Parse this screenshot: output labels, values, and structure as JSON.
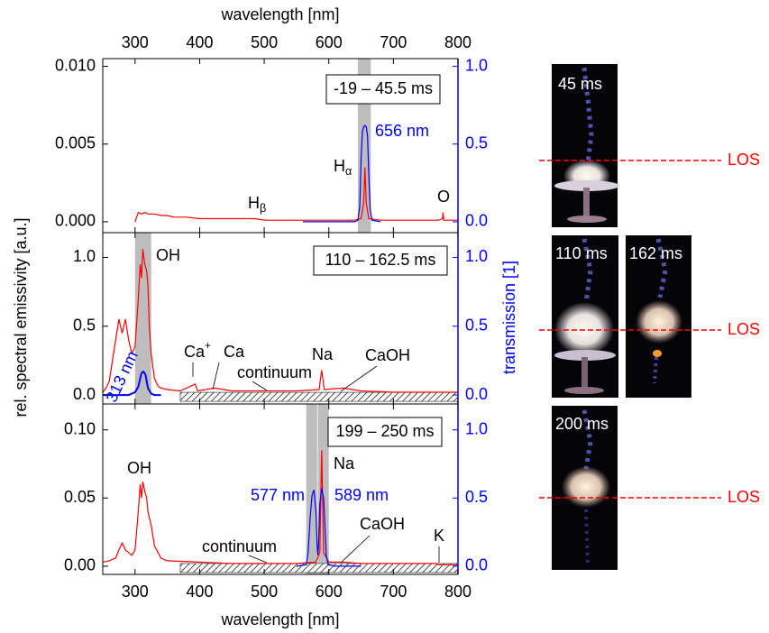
{
  "figure": {
    "xlabel_top": "wavelength [nm]",
    "xlabel": "wavelength [nm]",
    "ylabel": "rel. spectral emissivity [a.u.]",
    "y2label": "transmission [1]",
    "y2_color": "#0000ff"
  },
  "chart_data": [
    {
      "type": "line",
      "time_label": "-19 – 45.5 ms",
      "xlim": [
        250,
        800
      ],
      "xticks": [
        300,
        400,
        500,
        600,
        700,
        800
      ],
      "ylim": [
        -0.0007,
        0.0105
      ],
      "yticks": [
        {
          "value": 0,
          "label": "0.000"
        },
        {
          "value": 0.005,
          "label": "0.005"
        },
        {
          "value": 0.01,
          "label": "0.010"
        }
      ],
      "y2lim": [
        -0.07,
        1.05
      ],
      "y2ticks": [
        {
          "value": 0,
          "label": "0.0"
        },
        {
          "value": 0.5,
          "label": "0.5"
        },
        {
          "value": 1,
          "label": "1.0"
        }
      ],
      "shaded": [
        [
          645,
          665
        ]
      ],
      "series": [
        {
          "color": "#ff0000",
          "x": [
            300,
            305,
            310,
            315,
            320,
            330,
            340,
            350,
            360,
            380,
            400,
            450,
            486,
            500,
            550,
            600,
            640,
            650,
            654,
            656,
            658,
            662,
            680,
            700,
            750,
            770,
            776,
            777,
            778,
            785,
            800
          ],
          "values": [
            0,
            0.0006,
            0.0005,
            0.0006,
            0.0005,
            0.0005,
            0.0004,
            0.0004,
            0.0003,
            0.0003,
            0.0002,
            0.0002,
            0.0002,
            0.0001,
            0.0001,
            0.0001,
            0.0001,
            0.0002,
            0.0012,
            0.0035,
            0.0012,
            0.0002,
            0.0001,
            0.0001,
            0.0001,
            0.0001,
            0.0002,
            0.0006,
            0.0001,
            0.0001,
            0.0001
          ]
        },
        {
          "color": "#0000ff",
          "axis": "y2",
          "x": [
            560,
            600,
            640,
            645,
            648,
            650,
            652,
            654,
            656,
            658,
            660,
            662,
            664,
            667,
            680
          ],
          "values": [
            0,
            0,
            0,
            0.01,
            0.1,
            0.4,
            0.58,
            0.61,
            0.62,
            0.61,
            0.55,
            0.3,
            0.08,
            0.01,
            0
          ]
        }
      ],
      "annotations": [
        {
          "text": "656 nm",
          "color": "#0000ff"
        },
        {
          "text": "H",
          "sub": "α"
        },
        {
          "text": "H",
          "sub": "β"
        },
        {
          "text": "O"
        }
      ]
    },
    {
      "type": "line",
      "time_label": "110 – 162.5 ms",
      "xlim": [
        250,
        800
      ],
      "xticks": [
        300,
        400,
        500,
        600,
        700,
        800
      ],
      "ylim": [
        -0.065,
        1.18
      ],
      "yticks": [
        {
          "value": 0,
          "label": "0.0"
        },
        0.5,
        {
          "value": 1,
          "label": "1.0"
        }
      ],
      "y2lim": [
        -0.065,
        1.18
      ],
      "y2ticks": [
        {
          "value": 0,
          "label": "0.0"
        },
        0.5,
        {
          "value": 1,
          "label": "1.0"
        }
      ],
      "shaded": [
        [
          300,
          325
        ]
      ],
      "hatched": [
        370,
        800
      ],
      "series": [
        {
          "color": "#ff0000",
          "x": [
            250,
            255,
            260,
            265,
            270,
            275,
            280,
            285,
            290,
            295,
            300,
            305,
            308,
            310,
            312,
            315,
            318,
            320,
            322,
            325,
            330,
            335,
            340,
            350,
            370,
            393,
            397,
            423,
            450,
            500,
            550,
            585,
            589,
            593,
            622,
            650,
            700,
            750,
            800
          ],
          "values": [
            0.02,
            0.05,
            0.1,
            0.25,
            0.4,
            0.55,
            0.45,
            0.55,
            0.4,
            0.3,
            0.35,
            0.7,
            0.95,
            0.85,
            1.06,
            0.95,
            0.9,
            0.8,
            0.5,
            0.3,
            0.12,
            0.07,
            0.05,
            0.04,
            0.03,
            0.08,
            0.03,
            0.05,
            0.03,
            0.03,
            0.03,
            0.04,
            0.18,
            0.04,
            0.05,
            0.03,
            0.02,
            0.02,
            0.02
          ]
        },
        {
          "color": "#0000ff",
          "axis": "y2",
          "x": [
            250,
            290,
            300,
            305,
            308,
            310,
            313,
            316,
            318,
            320,
            325,
            330,
            340
          ],
          "values": [
            0,
            0,
            0.02,
            0.06,
            0.12,
            0.16,
            0.17,
            0.15,
            0.1,
            0.05,
            0.01,
            0,
            0
          ]
        }
      ],
      "annotations": [
        {
          "text": "OH"
        },
        {
          "text": "313 nm",
          "color": "#0000ff"
        },
        {
          "text": "Ca",
          "sup": "+"
        },
        {
          "text": "Ca"
        },
        {
          "text": "continuum"
        },
        {
          "text": "Na"
        },
        {
          "text": "CaOH"
        }
      ]
    },
    {
      "type": "line",
      "time_label": "199 – 250 ms",
      "xlim": [
        250,
        800
      ],
      "xticks": [
        300,
        400,
        500,
        600,
        700,
        800
      ],
      "ylim": [
        -0.006,
        0.119
      ],
      "yticks": [
        {
          "value": 0,
          "label": "0.00"
        },
        {
          "value": 0.05,
          "label": "0.05"
        },
        {
          "value": 0.1,
          "label": "0.10"
        }
      ],
      "y2lim": [
        -0.06,
        1.19
      ],
      "y2ticks": [
        {
          "value": 0,
          "label": "0.0"
        },
        0.5,
        {
          "value": 1,
          "label": "1.0"
        }
      ],
      "shaded": [
        [
          565,
          582
        ],
        [
          583,
          600
        ]
      ],
      "hatched": [
        370,
        800
      ],
      "series": [
        {
          "color": "#ff0000",
          "x": [
            250,
            260,
            270,
            275,
            280,
            285,
            290,
            295,
            300,
            305,
            308,
            310,
            312,
            315,
            318,
            320,
            325,
            330,
            340,
            350,
            400,
            450,
            500,
            550,
            580,
            586,
            589,
            592,
            600,
            622,
            650,
            700,
            766,
            770,
            800
          ],
          "values": [
            0.003,
            0.004,
            0.006,
            0.012,
            0.017,
            0.012,
            0.01,
            0.008,
            0.012,
            0.04,
            0.06,
            0.05,
            0.062,
            0.055,
            0.05,
            0.04,
            0.03,
            0.015,
            0.006,
            0.004,
            0.003,
            0.002,
            0.002,
            0.002,
            0.003,
            0.01,
            0.085,
            0.01,
            0.003,
            0.003,
            0.002,
            0.002,
            0.002,
            0.001,
            0.001
          ]
        },
        {
          "color": "#0000ff",
          "axis": "y2",
          "x": [
            550,
            565,
            568,
            571,
            574,
            577,
            580,
            582,
            583,
            584,
            586,
            589,
            592,
            594,
            596,
            599,
            610,
            650
          ],
          "values": [
            0,
            0.01,
            0.1,
            0.35,
            0.52,
            0.56,
            0.4,
            0.15,
            0.08,
            0.15,
            0.45,
            0.57,
            0.5,
            0.3,
            0.08,
            0.01,
            0,
            0
          ]
        }
      ],
      "annotations": [
        {
          "text": "OH"
        },
        {
          "text": "Na"
        },
        {
          "text": "577 nm",
          "color": "#0000ff"
        },
        {
          "text": "589 nm",
          "color": "#0000ff"
        },
        {
          "text": "CaOH"
        },
        {
          "text": "continuum"
        },
        {
          "text": "K"
        }
      ]
    }
  ],
  "images": [
    {
      "label": "45 ms"
    },
    {
      "label": "110 ms"
    },
    {
      "label": "162 ms"
    },
    {
      "label": "200 ms"
    }
  ],
  "los": [
    "LOS",
    "LOS",
    "LOS"
  ]
}
